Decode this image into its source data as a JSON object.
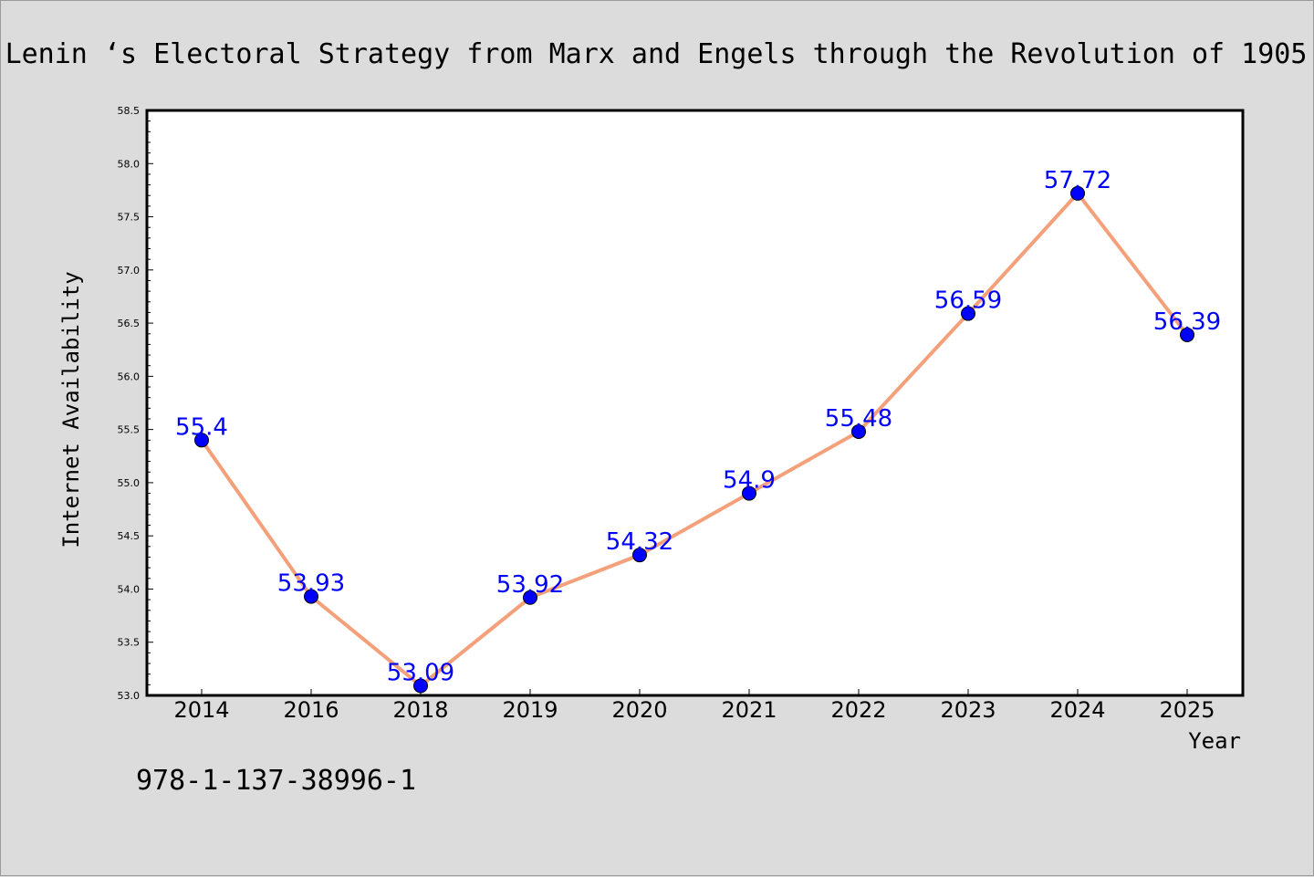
{
  "chart_data": {
    "type": "line",
    "title": "Lenin ‘s Electoral Strategy from Marx and Engels through the Revolution of 1905",
    "xlabel": "Year",
    "ylabel": "Internet Availability",
    "categories": [
      "2014",
      "2016",
      "2018",
      "2019",
      "2020",
      "2021",
      "2022",
      "2023",
      "2024",
      "2025"
    ],
    "series": [
      {
        "values": [
          55.4,
          53.93,
          53.09,
          53.92,
          54.32,
          54.9,
          55.48,
          56.59,
          57.72,
          56.39
        ],
        "labels": [
          "55.4",
          "53.93",
          "53.09",
          "53.92",
          "54.32",
          "54.9",
          "55.48",
          "56.59",
          "57.72",
          "56.39"
        ]
      }
    ],
    "ylim": [
      53.0,
      58.5
    ],
    "yticks": [
      "53.0",
      "53.5",
      "54.0",
      "54.5",
      "55.0",
      "55.5",
      "56.0",
      "56.5",
      "57.0",
      "57.5",
      "58.0",
      "58.5"
    ],
    "ytick_values": [
      53.0,
      53.5,
      54.0,
      54.5,
      55.0,
      55.5,
      56.0,
      56.5,
      57.0,
      57.5,
      58.0,
      58.5
    ],
    "grid": false,
    "legend": "none",
    "line_color": "#f4a07a",
    "marker_color": "#0000ff",
    "label_color": "#0000ff"
  },
  "footer": {
    "isbn": "978-1-137-38996-1"
  }
}
